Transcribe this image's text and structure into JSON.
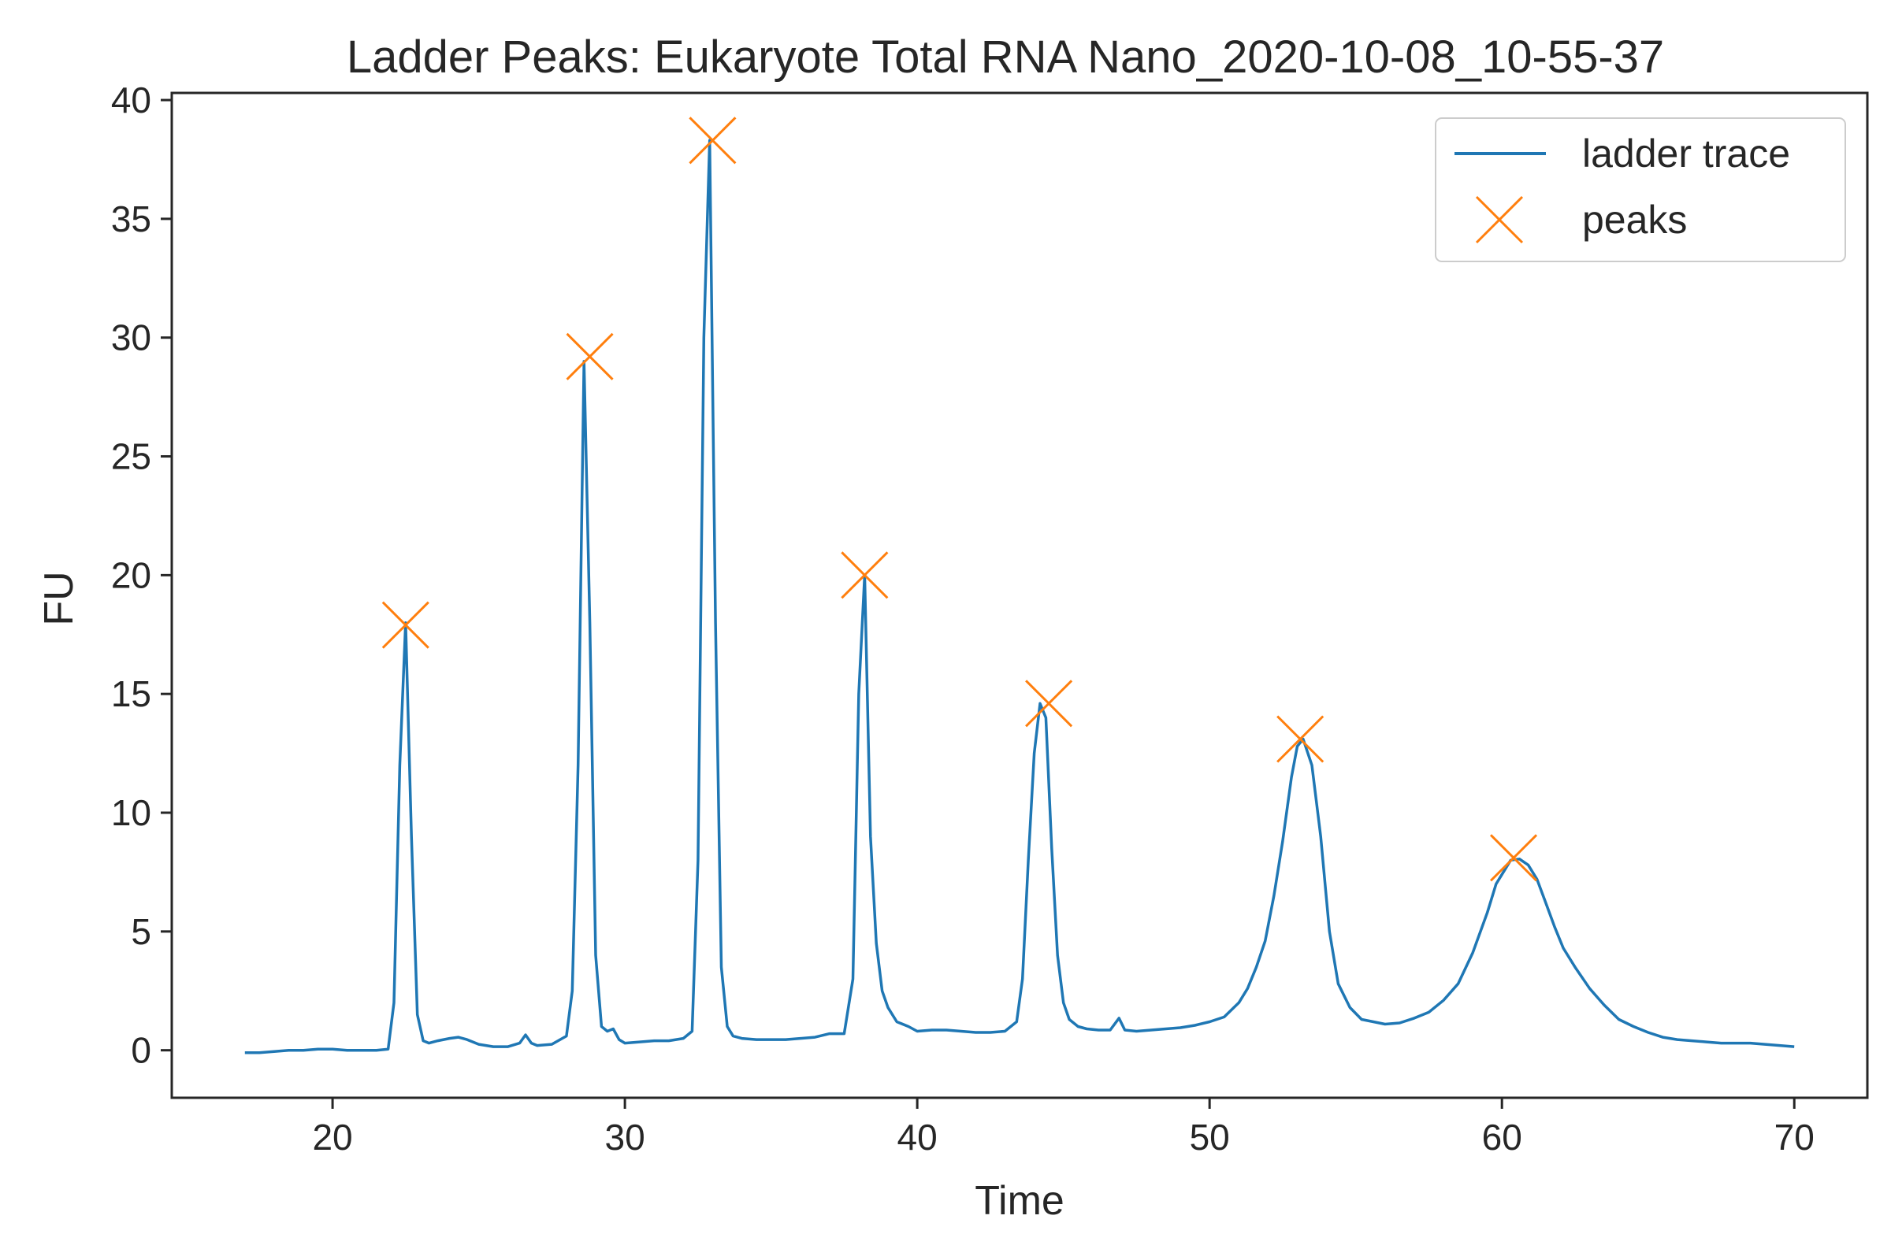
{
  "chart_data": {
    "type": "line",
    "title": "Ladder Peaks: Eukaryote Total RNA Nano_2020-10-08_10-55-37",
    "xlabel": "Time",
    "ylabel": "FU",
    "xlim": [
      14.5,
      72.5
    ],
    "ylim": [
      -2,
      40.3
    ],
    "xticks": [
      20,
      30,
      40,
      50,
      60,
      70
    ],
    "yticks": [
      0,
      5,
      10,
      15,
      20,
      25,
      30,
      35,
      40
    ],
    "grid": false,
    "legend_position": "top-right",
    "colors": {
      "trace": "#1f77b4",
      "peaks": "#ff7f0e",
      "axes": "#262626"
    },
    "series": [
      {
        "name": "ladder trace",
        "kind": "line",
        "x": [
          17.0,
          17.5,
          18.0,
          18.5,
          19.0,
          19.5,
          20.0,
          20.5,
          21.0,
          21.5,
          21.9,
          22.1,
          22.3,
          22.5,
          22.7,
          22.9,
          23.1,
          23.3,
          23.6,
          24.0,
          24.3,
          24.6,
          25.0,
          25.5,
          26.0,
          26.4,
          26.6,
          26.8,
          27.0,
          27.5,
          28.0,
          28.2,
          28.4,
          28.6,
          28.8,
          29.0,
          29.2,
          29.4,
          29.6,
          29.8,
          30.0,
          30.5,
          31.0,
          31.5,
          32.0,
          32.3,
          32.5,
          32.7,
          32.9,
          33.1,
          33.3,
          33.5,
          33.7,
          34.0,
          34.5,
          35.0,
          35.5,
          36.0,
          36.5,
          37.0,
          37.5,
          37.8,
          38.0,
          38.2,
          38.4,
          38.6,
          38.8,
          39.0,
          39.3,
          39.7,
          40.0,
          40.5,
          41.0,
          41.5,
          42.0,
          42.5,
          43.0,
          43.4,
          43.6,
          43.8,
          44.0,
          44.2,
          44.4,
          44.6,
          44.8,
          45.0,
          45.2,
          45.5,
          45.8,
          46.2,
          46.6,
          46.9,
          47.1,
          47.5,
          48.0,
          48.5,
          49.0,
          49.5,
          50.0,
          50.5,
          51.0,
          51.3,
          51.6,
          51.9,
          52.2,
          52.5,
          52.8,
          53.0,
          53.2,
          53.5,
          53.8,
          54.1,
          54.4,
          54.8,
          55.2,
          55.6,
          56.0,
          56.5,
          57.0,
          57.5,
          58.0,
          58.5,
          59.0,
          59.5,
          59.8,
          60.1,
          60.3,
          60.6,
          60.9,
          61.2,
          61.5,
          61.8,
          62.1,
          62.5,
          63.0,
          63.5,
          64.0,
          64.5,
          65.0,
          65.5,
          66.0,
          66.5,
          67.0,
          67.5,
          68.0,
          68.5,
          69.0,
          69.5,
          70.0
        ],
        "y": [
          -0.1,
          -0.1,
          -0.05,
          0.0,
          0.0,
          0.05,
          0.05,
          0.0,
          0.0,
          0.0,
          0.05,
          2.0,
          12.0,
          18.0,
          9.0,
          1.5,
          0.4,
          0.3,
          0.4,
          0.5,
          0.55,
          0.45,
          0.25,
          0.15,
          0.15,
          0.3,
          0.65,
          0.3,
          0.2,
          0.25,
          0.6,
          2.5,
          12.0,
          29.0,
          18.0,
          4.0,
          1.0,
          0.8,
          0.9,
          0.45,
          0.3,
          0.35,
          0.4,
          0.4,
          0.5,
          0.8,
          8.0,
          30.0,
          38.3,
          18.0,
          3.5,
          1.0,
          0.6,
          0.5,
          0.45,
          0.45,
          0.45,
          0.5,
          0.55,
          0.7,
          0.7,
          3.0,
          15.0,
          20.0,
          9.0,
          4.5,
          2.5,
          1.8,
          1.2,
          1.0,
          0.8,
          0.85,
          0.85,
          0.8,
          0.75,
          0.75,
          0.8,
          1.2,
          3.0,
          8.0,
          12.5,
          14.6,
          14.0,
          8.5,
          4.0,
          2.0,
          1.3,
          1.0,
          0.9,
          0.85,
          0.85,
          1.35,
          0.85,
          0.8,
          0.85,
          0.9,
          0.95,
          1.05,
          1.2,
          1.4,
          2.0,
          2.6,
          3.5,
          4.6,
          6.5,
          8.8,
          11.5,
          12.8,
          13.1,
          12.0,
          9.0,
          5.0,
          2.8,
          1.8,
          1.3,
          1.2,
          1.1,
          1.15,
          1.35,
          1.6,
          2.1,
          2.8,
          4.1,
          5.8,
          7.0,
          7.6,
          8.0,
          8.05,
          7.8,
          7.2,
          6.2,
          5.2,
          4.3,
          3.5,
          2.6,
          1.9,
          1.3,
          1.0,
          0.75,
          0.55,
          0.45,
          0.4,
          0.35,
          0.3,
          0.3,
          0.3,
          0.25,
          0.2,
          0.15
        ]
      },
      {
        "name": "peaks",
        "kind": "scatter",
        "marker": "x",
        "x": [
          22.5,
          28.8,
          33.0,
          38.2,
          44.5,
          53.1,
          60.4
        ],
        "y": [
          17.9,
          29.2,
          38.3,
          20.0,
          14.6,
          13.1,
          8.1
        ]
      }
    ]
  }
}
